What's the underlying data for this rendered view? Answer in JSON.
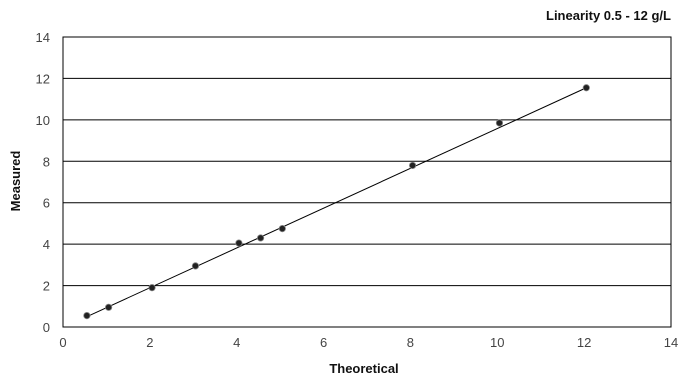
{
  "chart_data": {
    "type": "scatter",
    "title": "Linearity 0.5 - 12 g/L",
    "xlabel": "Theoretical",
    "ylabel": "Measured",
    "xlim": [
      0,
      14
    ],
    "ylim": [
      0,
      14
    ],
    "xticks": [
      "0",
      "2",
      "4",
      "6",
      "8",
      "10",
      "12",
      "14"
    ],
    "yticks": [
      "0",
      "2",
      "4",
      "6",
      "8",
      "10",
      "12",
      "14"
    ],
    "grid": "horizontal",
    "series": [
      {
        "points": [
          {
            "x": 0.55,
            "y": 0.55
          },
          {
            "x": 1.05,
            "y": 0.95
          },
          {
            "x": 2.05,
            "y": 1.9
          },
          {
            "x": 3.05,
            "y": 2.95
          },
          {
            "x": 4.05,
            "y": 4.05
          },
          {
            "x": 4.55,
            "y": 4.3
          },
          {
            "x": 5.05,
            "y": 4.75
          },
          {
            "x": 8.05,
            "y": 7.8
          },
          {
            "x": 10.05,
            "y": 9.85
          },
          {
            "x": 12.05,
            "y": 11.55
          }
        ]
      }
    ],
    "trendline": {
      "x": [
        0.55,
        12.05
      ],
      "y": [
        0.5,
        11.55
      ]
    },
    "colors": {
      "point": "#222222",
      "line": "#000000",
      "grid": "#000000"
    }
  }
}
